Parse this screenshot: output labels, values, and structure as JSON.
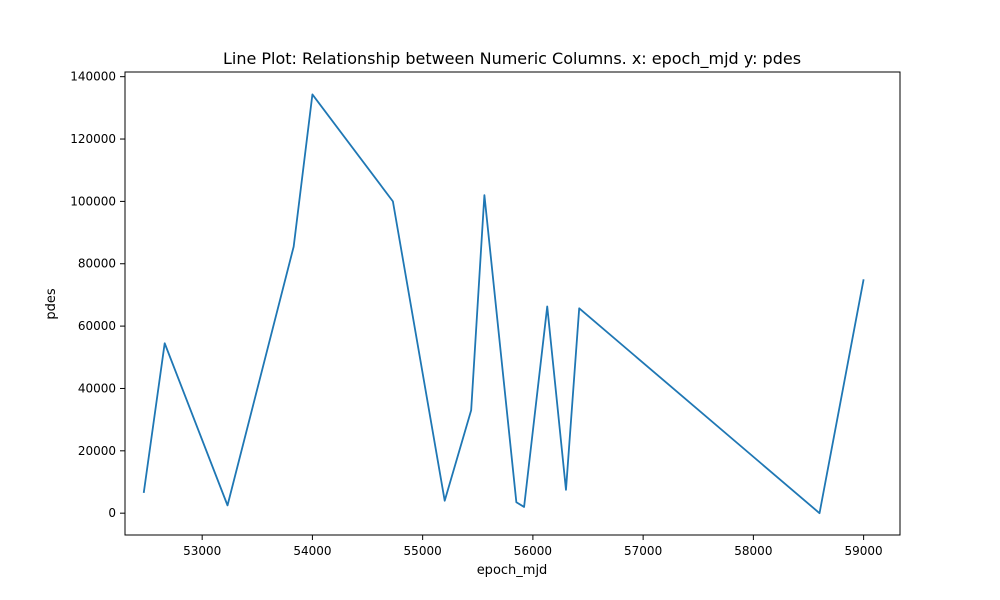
{
  "chart_data": {
    "type": "line",
    "title": "Line Plot: Relationship between Numeric Columns. x: epoch_mjd y: pdes",
    "xlabel": "epoch_mjd",
    "ylabel": "pdes",
    "xlim": [
      52300,
      59330
    ],
    "ylim": [
      -7000,
      141500
    ],
    "xticks": [
      53000,
      54000,
      55000,
      56000,
      57000,
      58000,
      59000
    ],
    "yticks": [
      0,
      20000,
      40000,
      60000,
      80000,
      100000,
      120000,
      140000
    ],
    "grid": false,
    "line_color": "#1f77b4",
    "series": [
      {
        "x": [
          52470,
          52660,
          53230,
          53830,
          54000,
          54730,
          55200,
          55440,
          55560,
          55850,
          55920,
          56130,
          56300,
          56420,
          58600,
          59000
        ],
        "y": [
          6500,
          54500,
          2500,
          85500,
          134300,
          100000,
          4000,
          33000,
          102000,
          3500,
          2000,
          66300,
          7500,
          65700,
          0,
          75000
        ]
      }
    ]
  }
}
